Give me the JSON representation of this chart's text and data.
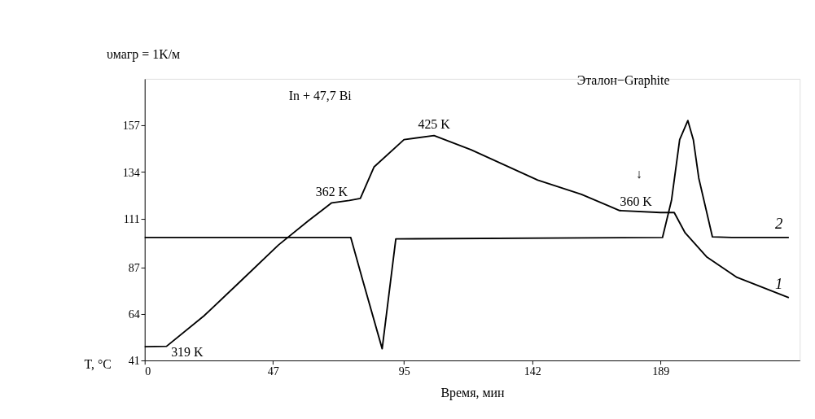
{
  "chart_data": {
    "type": "line",
    "xlabel": "Время, мин",
    "ylabel": "T, °C",
    "xlim": [
      0,
      240
    ],
    "xticks": [
      0,
      47,
      95,
      142,
      189
    ],
    "ylim": [
      41,
      180
    ],
    "yticks": [
      41,
      64,
      87,
      111,
      134,
      157
    ],
    "grid": false,
    "marker": "none",
    "line_style": "solid",
    "series": [
      {
        "name": "1",
        "color": "#000000",
        "x": [
          0,
          8,
          21.7,
          35,
          49,
          60,
          68.5,
          75,
          79,
          84,
          95,
          106,
          119.6,
          144,
          160,
          174,
          189,
          194,
          198,
          206,
          217,
          236
        ],
        "values": [
          47.8,
          48,
          63,
          80,
          98,
          110,
          118.8,
          120,
          121,
          136.5,
          150,
          152,
          145,
          130,
          123,
          115,
          114,
          114,
          104,
          92,
          82,
          72
        ]
      },
      {
        "name": "2",
        "color": "#000000",
        "x": [
          0,
          75.5,
          80,
          87,
          92,
          189.7,
          193,
          196,
          199,
          201,
          203,
          208,
          215,
          236
        ],
        "values": [
          101.7,
          101.7,
          80,
          46.8,
          101,
          101.7,
          120,
          150,
          159.4,
          150,
          131,
          102,
          101.7,
          101.7
        ]
      }
    ],
    "annotations": [
      "υмагр = 1K/м",
      "In + 47,7 Bi",
      "Эталон−Graphite",
      "↓",
      {
        "text": "319 K",
        "x": 8,
        "y": 48
      },
      {
        "text": "362 K",
        "x": 68.5,
        "y": 118.8
      },
      {
        "text": "425 K",
        "x": 106,
        "y": 152
      },
      {
        "text": "360 K",
        "x": 180,
        "y": 114
      }
    ]
  }
}
